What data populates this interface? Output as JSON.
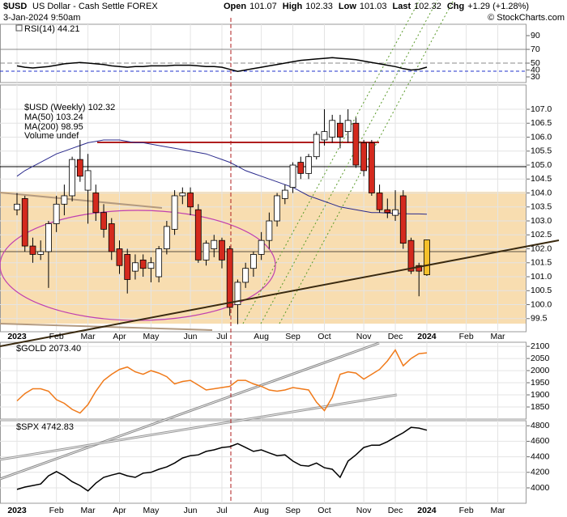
{
  "header": {
    "symbol": "$USD",
    "name": "US Dollar - Cash Settle FOREX",
    "datetime": "3-Jan-2024 9:50am",
    "quote": [
      {
        "label": "Open",
        "value": 101.07
      },
      {
        "label": "High",
        "value": 102.33
      },
      {
        "label": "Low",
        "value": 101.03
      },
      {
        "label": "Last",
        "value": 102.32
      },
      {
        "label": "Chg",
        "value": "+1.29 (+1.28%)"
      }
    ],
    "watermark": "© StockCharts.com"
  },
  "chart_data": [
    {
      "type": "line",
      "series": [
        {
          "name": "RSI(14) 44.21",
          "color": "#000000",
          "values": [
            46,
            44,
            43,
            44,
            45,
            47,
            49,
            50,
            51,
            50,
            49,
            48,
            46,
            45,
            44,
            45,
            45,
            46,
            46,
            46,
            47,
            47,
            47,
            46,
            45,
            45,
            44,
            41,
            38,
            40,
            42,
            44,
            46,
            48,
            50,
            52,
            54,
            55,
            56,
            57,
            58,
            57,
            56,
            55,
            53,
            51,
            49,
            47,
            45,
            42,
            40,
            41,
            44.21
          ]
        }
      ],
      "ylim": [
        21.8,
        106.5
      ],
      "yticks": [
        90,
        70,
        50,
        40,
        30
      ],
      "grid": false
    },
    {
      "type": "candlestick",
      "title": "$USD (Weekly) 102.32",
      "categories": [
        "2023",
        null,
        null,
        null,
        null,
        "Feb",
        null,
        null,
        null,
        "Mar",
        null,
        null,
        null,
        "Apr",
        null,
        null,
        null,
        "May",
        null,
        null,
        null,
        null,
        "Jun",
        null,
        null,
        null,
        "Jul",
        null,
        null,
        null,
        null,
        "Aug",
        null,
        null,
        null,
        "Sep",
        null,
        null,
        null,
        "Oct",
        null,
        null,
        null,
        null,
        "Nov",
        null,
        null,
        null,
        "Dec",
        null,
        null,
        null,
        "2024",
        null,
        null,
        null,
        null,
        "Feb",
        null,
        null,
        null,
        "Mar",
        null,
        null,
        null
      ],
      "open": [
        103.4,
        103.8,
        102.1,
        101.8,
        101.9,
        102.9,
        103.6,
        103.9,
        105.2,
        104.1,
        104.0,
        103.3,
        102.9,
        102.0,
        101.8,
        101.2,
        101.6,
        101.3,
        101.0,
        102.0,
        102.7,
        103.9,
        104.0,
        103.4,
        101.6,
        102.0,
        102.3,
        102.0,
        100.0,
        100.8,
        101.3,
        101.8,
        102.3,
        103.0,
        103.8,
        104.2,
        105.1,
        104.7,
        105.3,
        105.9,
        106.0,
        106.5,
        106.2,
        106.5,
        105.8,
        105.8,
        104.0,
        103.4,
        103.2,
        103.9,
        102.3,
        101.4,
        101.07,
        null,
        null,
        null,
        null,
        null,
        null,
        null,
        null,
        null,
        null,
        null,
        null
      ],
      "high": [
        104.0,
        103.9,
        102.4,
        102.3,
        103.0,
        103.9,
        104.3,
        105.3,
        105.9,
        105.4,
        104.3,
        103.6,
        103.1,
        102.3,
        102.0,
        101.8,
        101.8,
        101.7,
        102.1,
        103.0,
        104.1,
        104.2,
        104.2,
        103.6,
        102.3,
        102.5,
        102.4,
        102.1,
        100.9,
        101.5,
        101.9,
        102.6,
        103.3,
        104.0,
        104.3,
        105.1,
        105.3,
        105.4,
        106.2,
        107.0,
        106.8,
        106.8,
        107.0,
        106.7,
        105.9,
        105.9,
        104.3,
        103.8,
        104.1,
        104.1,
        102.4,
        101.5,
        102.33,
        null,
        null,
        null,
        null,
        null,
        null,
        null,
        null,
        null,
        null,
        null,
        null
      ],
      "low": [
        103.2,
        101.9,
        101.5,
        101.6,
        100.6,
        102.6,
        103.2,
        103.7,
        104.4,
        102.9,
        103.0,
        102.4,
        101.6,
        101.1,
        100.4,
        100.9,
        101.0,
        100.8,
        100.8,
        101.8,
        102.5,
        103.6,
        103.2,
        101.5,
        101.4,
        101.7,
        101.3,
        99.6,
        99.3,
        100.6,
        101.0,
        101.6,
        102.0,
        102.8,
        103.6,
        104.0,
        104.5,
        104.5,
        105.2,
        105.7,
        105.8,
        105.6,
        105.8,
        104.9,
        104.6,
        103.9,
        103.3,
        103.1,
        103.0,
        102.0,
        101.1,
        100.3,
        101.03,
        null,
        null,
        null,
        null,
        null,
        null,
        null,
        null,
        null,
        null,
        null,
        null
      ],
      "close": [
        103.6,
        102.1,
        101.8,
        101.9,
        102.9,
        103.6,
        103.9,
        105.2,
        104.6,
        104.8,
        103.3,
        102.7,
        101.9,
        101.4,
        100.9,
        101.5,
        101.3,
        101.5,
        102.0,
        102.8,
        103.9,
        104.0,
        103.5,
        101.6,
        102.2,
        102.3,
        101.6,
        99.9,
        100.8,
        101.3,
        101.8,
        102.3,
        103.0,
        103.9,
        104.1,
        105.0,
        104.7,
        105.3,
        106.1,
        106.2,
        106.6,
        106.0,
        106.6,
        105.0,
        104.8,
        104.0,
        103.4,
        103.3,
        103.4,
        102.2,
        101.2,
        101.2,
        102.32,
        null,
        null,
        null,
        null,
        null,
        null,
        null,
        null,
        null,
        null,
        null,
        null
      ],
      "up_color": "#ffffff",
      "down_color": "#d42a1e",
      "last_color": "#f5c02a",
      "series": [
        {
          "name": "MA(50) 103.24",
          "color": "#2a2a8c",
          "values": [
            104.6,
            104.8,
            104.95,
            105.1,
            105.25,
            105.4,
            105.5,
            105.6,
            105.7,
            105.8,
            105.85,
            105.9,
            105.9,
            105.9,
            105.85,
            105.8,
            105.8,
            105.75,
            105.7,
            105.65,
            105.6,
            105.55,
            105.5,
            105.45,
            105.4,
            105.3,
            105.2,
            105.1,
            104.95,
            104.8,
            104.7,
            104.6,
            104.5,
            104.4,
            104.3,
            104.2,
            104.05,
            103.9,
            103.8,
            103.7,
            103.6,
            103.5,
            103.45,
            103.4,
            103.35,
            103.3,
            103.3,
            103.28,
            103.27,
            103.26,
            103.25,
            103.25,
            103.24,
            null,
            null,
            null,
            null,
            null,
            null,
            null,
            null,
            null,
            null,
            null,
            null
          ]
        }
      ],
      "legend_extra": [
        {
          "name": "MA(200) 98.95",
          "color": "#c0392b"
        },
        {
          "name": "Volume undef",
          "color": "#555555"
        }
      ],
      "ylim": [
        99.03,
        107.87
      ],
      "yticks": [
        {
          "value": 107,
          "label": "107.0"
        },
        106.5,
        {
          "value": 106,
          "label": "106.0"
        },
        105.5,
        {
          "value": 105,
          "label": "105.0"
        },
        104.5,
        {
          "value": 104,
          "label": "104.0"
        },
        103.5,
        {
          "value": 103,
          "label": "103.0"
        },
        102.5,
        {
          "value": 102,
          "label": "102.0"
        },
        101.5,
        {
          "value": 101,
          "label": "101.0"
        },
        100.5,
        {
          "value": 100,
          "label": "100.0"
        },
        99.5
      ],
      "grid": true
    },
    {
      "type": "line",
      "series": [
        {
          "name": "$GOLD 2073.40",
          "color": "#f07a1a",
          "values": [
            1875,
            1905,
            1925,
            1925,
            1915,
            1880,
            1865,
            1840,
            1825,
            1860,
            1915,
            1960,
            1985,
            2005,
            2015,
            1995,
            1985,
            2000,
            1990,
            1975,
            1945,
            1955,
            1960,
            1940,
            1920,
            1925,
            1930,
            1935,
            1960,
            1960,
            1945,
            1935,
            1920,
            1915,
            1920,
            1930,
            1925,
            1920,
            1870,
            1835,
            1890,
            1985,
            1995,
            1990,
            1965,
            1985,
            2005,
            2040,
            2085,
            2020,
            2050,
            2070,
            2073.4
          ]
        }
      ],
      "ylim": [
        1800,
        2117
      ],
      "yticks": [
        2100,
        2050,
        2000,
        1950,
        1900,
        1850
      ],
      "grid": true
    },
    {
      "type": "line",
      "categories": [
        "2023",
        null,
        null,
        null,
        null,
        "Feb",
        null,
        null,
        null,
        "Mar",
        null,
        null,
        null,
        "Apr",
        null,
        null,
        null,
        "May",
        null,
        null,
        null,
        null,
        "Jun",
        null,
        null,
        null,
        "Jul",
        null,
        null,
        null,
        null,
        "Aug",
        null,
        null,
        null,
        "Sep",
        null,
        null,
        null,
        "Oct",
        null,
        null,
        null,
        null,
        "Nov",
        null,
        null,
        null,
        "Dec",
        null,
        null,
        null,
        "2024",
        null,
        null,
        null,
        null,
        "Feb",
        null,
        null,
        null,
        "Mar",
        null,
        null,
        null
      ],
      "series": [
        {
          "name": "$SPX 4742.83",
          "color": "#000000",
          "values": [
            3980,
            4010,
            4030,
            4050,
            4155,
            4210,
            4155,
            4080,
            4030,
            3960,
            4060,
            4135,
            4165,
            4190,
            4155,
            4135,
            4190,
            4200,
            4240,
            4270,
            4320,
            4385,
            4415,
            4425,
            4470,
            4490,
            4520,
            4530,
            4570,
            4520,
            4470,
            4490,
            4450,
            4415,
            4425,
            4345,
            4290,
            4280,
            4320,
            4260,
            4240,
            4135,
            4345,
            4425,
            4520,
            4550,
            4550,
            4595,
            4655,
            4710,
            4780,
            4770,
            4742.83,
            null,
            null,
            null,
            null,
            null,
            null,
            null,
            null,
            null,
            null,
            null,
            null
          ]
        }
      ],
      "ylim": [
        3802,
        4865
      ],
      "yticks": [
        4800,
        4600,
        4400,
        4200,
        4000
      ],
      "grid": true
    }
  ]
}
